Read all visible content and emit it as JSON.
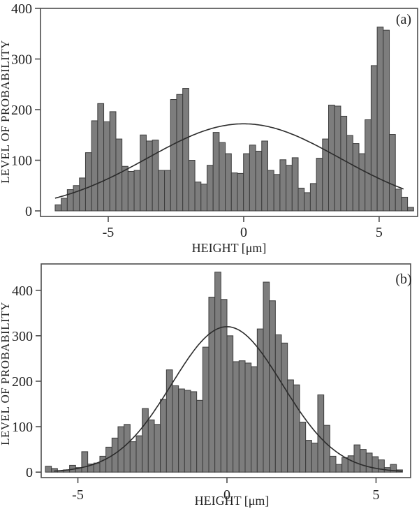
{
  "page": {
    "background": "#ffffff"
  },
  "chart_data": [
    {
      "panel_label": "(a)",
      "type": "bar",
      "subtype": "histogram-with-gaussian-fit",
      "title": "",
      "xlabel": "HEIGHT [μm]",
      "ylabel": "LEVEL OF PROBABILITY",
      "x_ticks": [
        -5,
        0,
        5
      ],
      "y_ticks": [
        0,
        100,
        200,
        300,
        400
      ],
      "xlim": [
        -7.5,
        6.42
      ],
      "ylim": [
        -11,
        400
      ],
      "grid": false,
      "legend": "none",
      "bin_start": -6.96,
      "bin_width": 0.2243,
      "bar_values": [
        12,
        25,
        42,
        50,
        65,
        115,
        178,
        212,
        176,
        196,
        142,
        88,
        78,
        80,
        150,
        138,
        140,
        80,
        80,
        220,
        230,
        242,
        100,
        57,
        53,
        90,
        155,
        135,
        113,
        75,
        74,
        113,
        130,
        118,
        138,
        80,
        72,
        101,
        90,
        105,
        45,
        36,
        54,
        104,
        142,
        209,
        207,
        187,
        149,
        133,
        113,
        180,
        287,
        363,
        357,
        151,
        43,
        27,
        7
      ],
      "curve": {
        "type": "gaussian",
        "amplitude": 172,
        "mean": 0,
        "sigma": 3.55,
        "x_from": -6.96,
        "x_to": 5.9
      },
      "colors": {
        "bar_fill": "#7d7d7d",
        "bar_edge": "#3c3c3c",
        "curve": "#2b2b2b",
        "frame": "#4d4d4d",
        "text": "#222222"
      }
    },
    {
      "panel_label": "(b)",
      "type": "bar",
      "subtype": "histogram-with-gaussian-fit",
      "title": "",
      "xlabel": "HEIGHT [μm]",
      "ylabel": "LEVEL OF PROBABILITY",
      "x_ticks": [
        -5,
        0,
        5
      ],
      "y_ticks": [
        0,
        100,
        200,
        300,
        400
      ],
      "xlim": [
        -6.23,
        6.16
      ],
      "ylim": [
        -12,
        458
      ],
      "grid": false,
      "legend": "none",
      "bin_start": -6.09,
      "bin_width": 0.203,
      "bar_values": [
        13,
        8,
        3,
        5,
        15,
        10,
        45,
        18,
        20,
        35,
        55,
        75,
        100,
        105,
        67,
        80,
        140,
        115,
        105,
        160,
        225,
        190,
        183,
        180,
        177,
        158,
        275,
        385,
        440,
        380,
        300,
        243,
        245,
        240,
        232,
        315,
        418,
        377,
        302,
        284,
        203,
        192,
        110,
        70,
        64,
        170,
        103,
        35,
        17,
        32,
        36,
        60,
        50,
        42,
        34,
        27,
        10,
        17,
        5
      ],
      "curve": {
        "type": "gaussian",
        "amplitude": 320,
        "mean": 0,
        "sigma": 1.85,
        "x_from": -5.8,
        "x_to": 5.88
      },
      "colors": {
        "bar_fill": "#7d7d7d",
        "bar_edge": "#3c3c3c",
        "curve": "#2b2b2b",
        "frame": "#4d4d4d",
        "text": "#222222"
      }
    }
  ]
}
